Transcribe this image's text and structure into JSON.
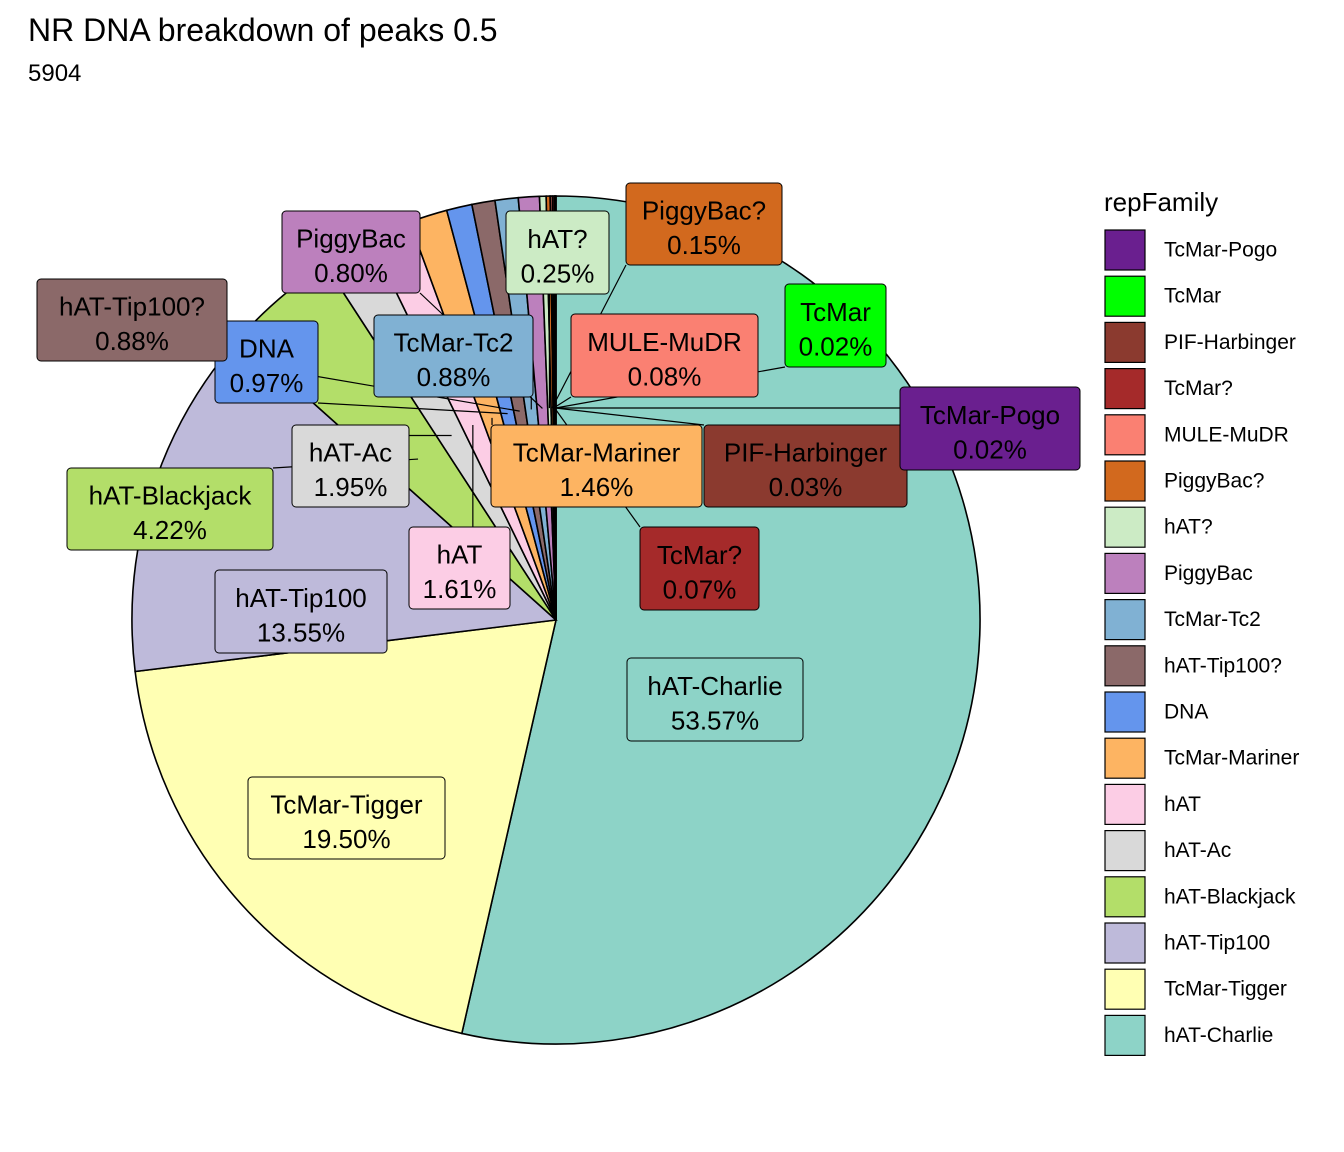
{
  "title": "NR DNA breakdown of peaks 0.5",
  "subtitle": "5904",
  "chart_data": {
    "type": "pie",
    "legend_title": "repFamily",
    "legend_position": "right",
    "slices": [
      {
        "name": "hAT-Charlie",
        "value": 53.57,
        "label": "53.57%",
        "color": "#8DD3C7"
      },
      {
        "name": "TcMar-Tigger",
        "value": 19.5,
        "label": "19.50%",
        "color": "#FFFFB3"
      },
      {
        "name": "hAT-Tip100",
        "value": 13.55,
        "label": "13.55%",
        "color": "#BEBADA"
      },
      {
        "name": "hAT-Blackjack",
        "value": 4.22,
        "label": "4.22%",
        "color": "#B3DE69"
      },
      {
        "name": "hAT-Ac",
        "value": 1.95,
        "label": "1.95%",
        "color": "#D9D9D9"
      },
      {
        "name": "hAT",
        "value": 1.61,
        "label": "1.61%",
        "color": "#FCCDE5"
      },
      {
        "name": "TcMar-Mariner",
        "value": 1.46,
        "label": "1.46%",
        "color": "#FDB462"
      },
      {
        "name": "DNA",
        "value": 0.97,
        "label": "0.97%",
        "color": "#6495ED"
      },
      {
        "name": "hAT-Tip100?",
        "value": 0.88,
        "label": "0.88%",
        "color": "#8B6969"
      },
      {
        "name": "TcMar-Tc2",
        "value": 0.88,
        "label": "0.88%",
        "color": "#80B1D3"
      },
      {
        "name": "PiggyBac",
        "value": 0.8,
        "label": "0.80%",
        "color": "#BC80BD"
      },
      {
        "name": "hAT?",
        "value": 0.25,
        "label": "0.25%",
        "color": "#CCEBC5"
      },
      {
        "name": "PiggyBac?",
        "value": 0.15,
        "label": "0.15%",
        "color": "#D2691E"
      },
      {
        "name": "MULE-MuDR",
        "value": 0.08,
        "label": "0.08%",
        "color": "#FA8072"
      },
      {
        "name": "TcMar?",
        "value": 0.07,
        "label": "0.07%",
        "color": "#A52A2A"
      },
      {
        "name": "PIF-Harbinger",
        "value": 0.03,
        "label": "0.03%",
        "color": "#8B3A2F"
      },
      {
        "name": "TcMar",
        "value": 0.02,
        "label": "0.02%",
        "color": "#00FF00"
      },
      {
        "name": "TcMar-Pogo",
        "value": 0.02,
        "label": "0.02%",
        "color": "#6A1F8F"
      }
    ],
    "legend_order": [
      "TcMar-Pogo",
      "TcMar",
      "PIF-Harbinger",
      "TcMar?",
      "MULE-MuDR",
      "PiggyBac?",
      "hAT?",
      "PiggyBac",
      "TcMar-Tc2",
      "hAT-Tip100?",
      "DNA",
      "TcMar-Mariner",
      "hAT",
      "hAT-Ac",
      "hAT-Blackjack",
      "hAT-Tip100",
      "TcMar-Tigger",
      "hAT-Charlie"
    ]
  }
}
